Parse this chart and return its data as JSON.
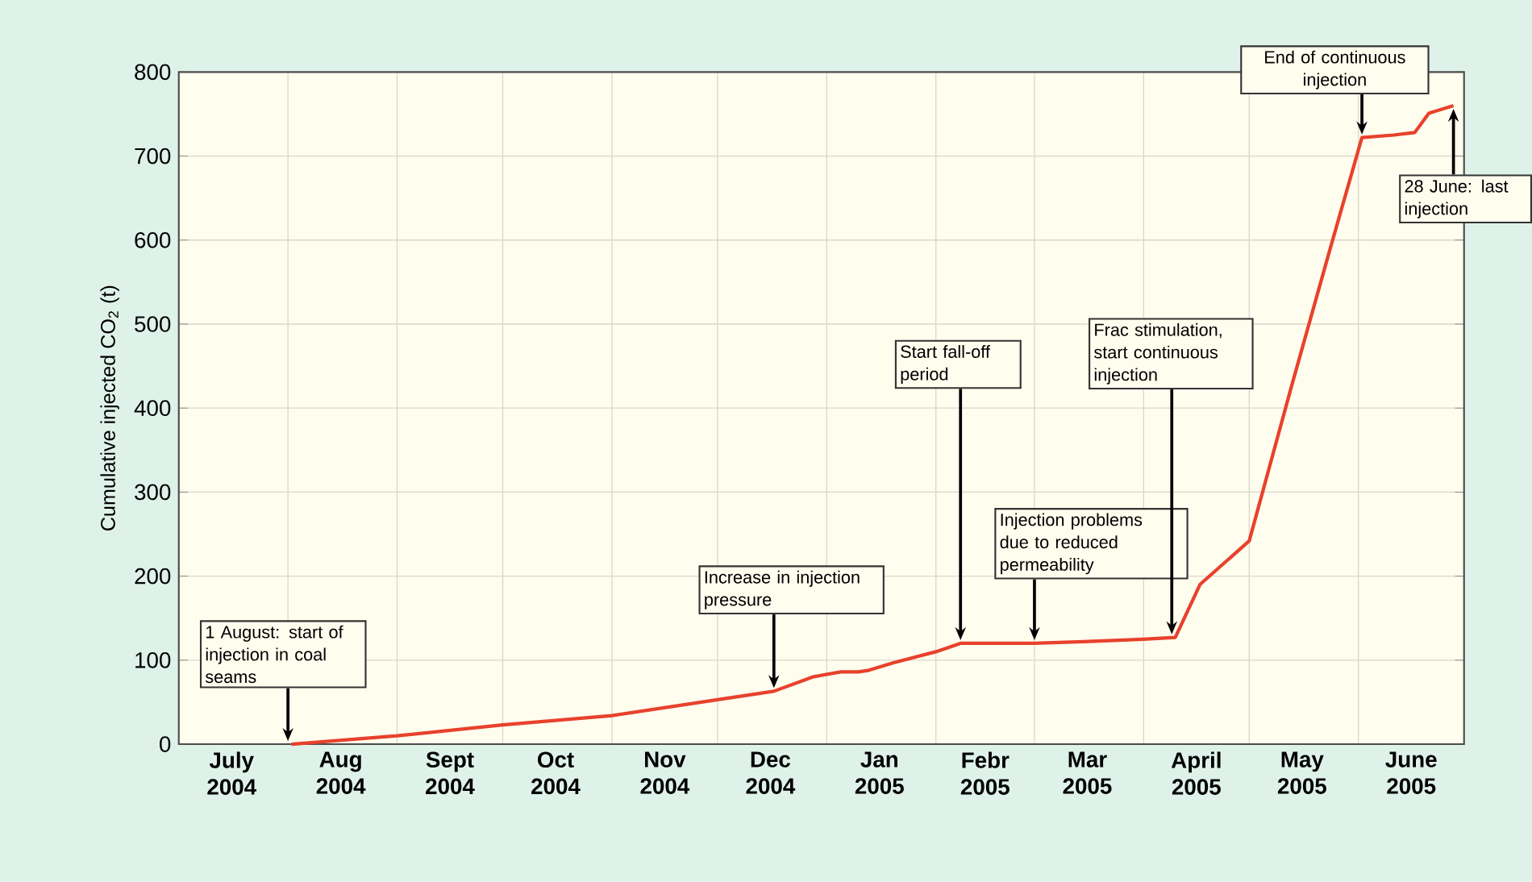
{
  "chart_data": {
    "type": "line",
    "ylabel": "Cumulative injected CO$_{2}$ (t)",
    "xlim": [
      "2004-07-01",
      "2005-07-01"
    ],
    "xticks": [
      {
        "value": "2004-07-01",
        "label": null
      },
      {
        "value": "2004-08-01",
        "label": null
      },
      {
        "value": "2004-09-01",
        "label": null
      },
      {
        "value": "2004-10-01",
        "label": null
      },
      {
        "value": "2004-11-01",
        "label": null
      },
      {
        "value": "2004-12-01",
        "label": null
      },
      {
        "value": "2005-01-01",
        "label": null
      },
      {
        "value": "2005-02-01",
        "label": null
      },
      {
        "value": "2005-03-01",
        "label": null
      },
      {
        "value": "2005-04-01",
        "label": null
      },
      {
        "value": "2005-05-01",
        "label": null
      },
      {
        "value": "2005-06-01",
        "label": null
      },
      {
        "value": "2005-07-01",
        "label": null
      },
      {
        "value": "2004-07-16",
        "label": "July 2004"
      },
      {
        "value": "2004-08-16",
        "label": "Aug 2004"
      },
      {
        "value": "2004-09-16",
        "label": "Sept 2004"
      },
      {
        "value": "2004-10-16",
        "label": "Oct 2004"
      },
      {
        "value": "2004-11-16",
        "label": "Nov 2004"
      },
      {
        "value": "2004-12-16",
        "label": "Dec 2004"
      },
      {
        "value": "2005-01-16",
        "label": "Jan 2005"
      },
      {
        "value": "2005-02-15",
        "label": "Febr 2005"
      },
      {
        "value": "2005-03-16",
        "label": "Mar 2005"
      },
      {
        "value": "2005-04-16",
        "label": "April 2005"
      },
      {
        "value": "2005-05-16",
        "label": "May 2005"
      },
      {
        "value": "2005-06-16",
        "label": "June 2005"
      }
    ],
    "ylim": [
      0,
      800
    ],
    "yticks": [
      0,
      100,
      200,
      300,
      400,
      500,
      600,
      700,
      800
    ],
    "grid": true,
    "series": [
      {
        "color": "#e8412c",
        "x": [
          "2004-08-02",
          "2004-09-01",
          "2004-10-01",
          "2004-11-01",
          "2004-12-01",
          "2004-12-17",
          "2004-12-28",
          "2005-01-05",
          "2005-01-10",
          "2005-01-13",
          "2005-01-20",
          "2005-02-01",
          "2005-02-08",
          "2005-03-01",
          "2005-03-15",
          "2005-04-01",
          "2005-04-10",
          "2005-04-17",
          "2005-05-01",
          "2005-05-13",
          "2005-05-24",
          "2005-06-02",
          "2005-06-11",
          "2005-06-17",
          "2005-06-21",
          "2005-06-28"
        ],
        "values": [
          0,
          10,
          23,
          34,
          53,
          63,
          80,
          86,
          86,
          88,
          97,
          110,
          120,
          120,
          122,
          125,
          127,
          190,
          242,
          426,
          590,
          722,
          725,
          728,
          751,
          760
        ]
      }
    ],
    "annotations": [
      {
        "text": "1 August: start of injection in coal seams",
        "x": "2004-08-01",
        "y": 0
      },
      {
        "text": "Increase in injection pressure",
        "x": "2004-12-17",
        "y": 63
      },
      {
        "text": "Start fall-off period",
        "x": "2005-02-08",
        "y": 120
      },
      {
        "text": "Injection problems due to reduced permeability",
        "x": "2005-03-01",
        "y": 120
      },
      {
        "text": "Frac stimulation, start continuous injection",
        "x": "2005-04-09",
        "y": 127
      },
      {
        "text": "End of continuous injection",
        "x": "2005-06-02",
        "y": 722
      },
      {
        "text": "28 June: last injection",
        "x": "2005-06-28",
        "y": 760
      }
    ]
  }
}
